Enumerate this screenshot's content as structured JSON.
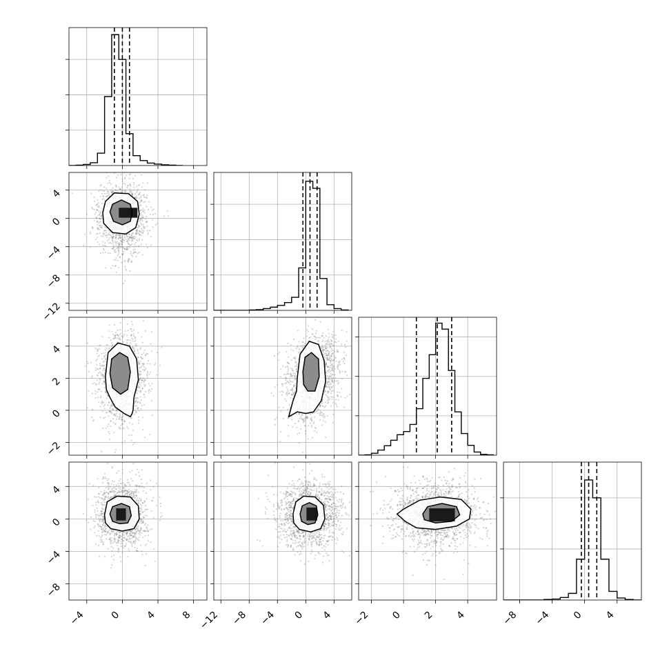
{
  "chart_data": {
    "type": "corner",
    "num_params": 4,
    "scatter_color": "#808080",
    "line_color": "#000000",
    "params": [
      {
        "range": [
          -6,
          9.5
        ],
        "ticks": [
          -4,
          0,
          4,
          8
        ],
        "tick_labels": [
          "−4",
          "0",
          "4",
          "8"
        ],
        "quantiles": [
          -0.9,
          0.0,
          0.8
        ]
      },
      {
        "range": [
          -13,
          6.5
        ],
        "ticks": [
          -12,
          -8,
          -4,
          0,
          4
        ],
        "tick_labels": [
          "−12",
          "−8",
          "−4",
          "0",
          "4"
        ],
        "quantiles": [
          -0.4,
          0.6,
          1.6
        ]
      },
      {
        "range": [
          -2.8,
          5.8
        ],
        "ticks": [
          -2,
          0,
          2,
          4
        ],
        "tick_labels": [
          "−2",
          "0",
          "2",
          "4"
        ],
        "quantiles": [
          0.8,
          2.1,
          3.0
        ]
      },
      {
        "range": [
          -10,
          7
        ],
        "ticks": [
          -8,
          -4,
          0,
          4
        ],
        "tick_labels": [
          "−8",
          "−4",
          "0",
          "4"
        ],
        "quantiles": [
          -0.4,
          0.5,
          1.5
        ]
      }
    ],
    "histograms": [
      {
        "edges": [
          -6,
          -5.2,
          -4.4,
          -3.6,
          -2.8,
          -2.0,
          -1.2,
          -0.4,
          0.4,
          1.2,
          2.0,
          2.8,
          3.6,
          4.4,
          5.2,
          6.0,
          6.8
        ],
        "counts": [
          0,
          1,
          3,
          8,
          35,
          195,
          370,
          300,
          90,
          28,
          14,
          7,
          4,
          2,
          1,
          0
        ],
        "ymax": 390,
        "yticks": [
          100,
          200,
          300
        ]
      },
      {
        "edges": [
          -13,
          -12,
          -11,
          -10,
          -9,
          -8,
          -7,
          -6,
          -5,
          -4,
          -3,
          -2,
          -1,
          0,
          1,
          2,
          3,
          4,
          5,
          6
        ],
        "counts": [
          0,
          0,
          0,
          0,
          0,
          1,
          2,
          5,
          9,
          14,
          22,
          37,
          120,
          365,
          345,
          90,
          16,
          5,
          1
        ],
        "ymax": 390,
        "yticks": [
          100,
          200,
          300
        ]
      },
      {
        "edges": [
          -2.8,
          -2.4,
          -2.0,
          -1.6,
          -1.2,
          -0.8,
          -0.4,
          0.0,
          0.4,
          0.8,
          1.2,
          1.6,
          2.0,
          2.4,
          2.8,
          3.2,
          3.6,
          4.0,
          4.4,
          4.8,
          5.2,
          5.6
        ],
        "counts": [
          0,
          1,
          5,
          13,
          24,
          38,
          52,
          60,
          78,
          118,
          195,
          255,
          335,
          320,
          215,
          110,
          55,
          25,
          8,
          2,
          1
        ],
        "ymax": 350,
        "yticks": [
          100,
          200,
          300
        ]
      },
      {
        "edges": [
          -10,
          -9,
          -8,
          -7,
          -6,
          -5,
          -4,
          -3,
          -2,
          -1,
          0,
          1,
          2,
          3,
          4,
          5,
          6,
          7
        ],
        "counts": [
          0,
          0,
          0,
          0,
          0,
          1,
          2,
          5,
          13,
          80,
          235,
          200,
          80,
          17,
          4,
          1,
          0
        ],
        "ymax": 270,
        "yticks": [
          100,
          200
        ]
      }
    ],
    "pairs": [
      {
        "row": 1,
        "col": 0,
        "mean": [
          0.0,
          0.6
        ],
        "sd": [
          1.35,
          2.1
        ],
        "rho": 0.0,
        "tail": -3.0,
        "contours": [
          [
            [
              -2.2,
              0.8
            ],
            [
              -1.9,
              2.4
            ],
            [
              -0.9,
              3.6
            ],
            [
              0.7,
              3.5
            ],
            [
              1.7,
              2.4
            ],
            [
              1.9,
              0.6
            ],
            [
              1.5,
              -1.3
            ],
            [
              0.4,
              -2.2
            ],
            [
              -1.1,
              -2.0
            ],
            [
              -2.1,
              -0.7
            ]
          ],
          [
            [
              -1.4,
              0.9
            ],
            [
              -1.1,
              2.0
            ],
            [
              -0.1,
              2.6
            ],
            [
              0.9,
              2.0
            ],
            [
              1.1,
              0.8
            ],
            [
              0.9,
              -0.4
            ],
            [
              0.0,
              -0.9
            ],
            [
              -1.0,
              -0.4
            ]
          ]
        ],
        "dense": [
          -0.4,
          0.1,
          1.7,
          1.5
        ]
      },
      {
        "row": 2,
        "col": 0,
        "mean": [
          0.0,
          2.2
        ],
        "sd": [
          1.3,
          1.2
        ],
        "rho": 0.0,
        "tail": -1.2,
        "contours": [
          [
            [
              -1.9,
              2.1
            ],
            [
              -1.6,
              3.6
            ],
            [
              -0.5,
              4.2
            ],
            [
              0.8,
              4.0
            ],
            [
              1.6,
              3.2
            ],
            [
              1.8,
              1.9
            ],
            [
              1.3,
              0.8
            ],
            [
              1.2,
              0.0
            ],
            [
              1.1,
              -0.2
            ],
            [
              0.9,
              -0.4
            ],
            [
              0.2,
              -0.2
            ],
            [
              -0.8,
              0.2
            ],
            [
              -1.4,
              0.8
            ],
            [
              -1.8,
              1.3
            ]
          ],
          [
            [
              -1.4,
              2.3
            ],
            [
              -1.2,
              3.2
            ],
            [
              -0.3,
              3.6
            ],
            [
              0.6,
              3.3
            ],
            [
              0.9,
              2.4
            ],
            [
              0.6,
              1.3
            ],
            [
              -0.2,
              1.0
            ],
            [
              -1.1,
              1.4
            ]
          ]
        ],
        "dense": [
          -0.5,
          1.8,
          1.1,
          1.3
        ]
      },
      {
        "row": 2,
        "col": 1,
        "mean": [
          1.0,
          2.2
        ],
        "sd": [
          1.9,
          1.2
        ],
        "rho": 0.3,
        "tail": -1.3,
        "contours": [
          [
            [
              -1.2,
              2.0
            ],
            [
              -0.8,
              3.5
            ],
            [
              0.5,
              4.3
            ],
            [
              1.8,
              4.1
            ],
            [
              2.6,
              3.1
            ],
            [
              2.8,
              1.8
            ],
            [
              2.2,
              0.6
            ],
            [
              1.1,
              -0.1
            ],
            [
              0.0,
              -0.2
            ],
            [
              -1.2,
              -0.1
            ],
            [
              -2.4,
              -0.4
            ],
            [
              -1.8,
              0.6
            ],
            [
              -1.3,
              1.2
            ]
          ],
          [
            [
              -0.4,
              2.4
            ],
            [
              -0.1,
              3.3
            ],
            [
              0.8,
              3.6
            ],
            [
              1.8,
              3.2
            ],
            [
              1.9,
              2.1
            ],
            [
              1.3,
              1.2
            ],
            [
              0.3,
              1.2
            ],
            [
              -0.3,
              1.6
            ]
          ]
        ],
        "dense": [
          0.1,
          1.6,
          2.2,
          1.4
        ]
      },
      {
        "row": 3,
        "col": 0,
        "mean": [
          0.0,
          0.5
        ],
        "sd": [
          1.35,
          2.0
        ],
        "rho": 0.0,
        "tail": 0,
        "contours": [
          [
            [
              -2.0,
              0.5
            ],
            [
              -1.7,
              2.1
            ],
            [
              -0.6,
              2.8
            ],
            [
              0.9,
              2.7
            ],
            [
              1.8,
              1.6
            ],
            [
              1.9,
              0.0
            ],
            [
              1.3,
              -1.2
            ],
            [
              0.0,
              -1.5
            ],
            [
              -1.3,
              -1.2
            ],
            [
              -1.9,
              -0.5
            ]
          ],
          [
            [
              -1.4,
              0.6
            ],
            [
              -1.1,
              1.5
            ],
            [
              -0.1,
              1.9
            ],
            [
              0.8,
              1.5
            ],
            [
              1.0,
              0.4
            ],
            [
              0.6,
              -0.5
            ],
            [
              -0.3,
              -0.6
            ],
            [
              -1.1,
              -0.3
            ]
          ]
        ],
        "dense": [
          -0.7,
          -0.2,
          0.4,
          1.3
        ]
      },
      {
        "row": 3,
        "col": 1,
        "mean": [
          0.6,
          0.5
        ],
        "sd": [
          2.3,
          2.0
        ],
        "rho": 0.0,
        "tail": 0,
        "contours": [
          [
            [
              -1.8,
              0.6
            ],
            [
              -1.4,
              2.1
            ],
            [
              -0.3,
              2.8
            ],
            [
              1.3,
              2.7
            ],
            [
              2.5,
              1.7
            ],
            [
              2.7,
              0.0
            ],
            [
              2.1,
              -1.2
            ],
            [
              0.7,
              -1.6
            ],
            [
              -0.9,
              -1.3
            ],
            [
              -1.7,
              -0.5
            ]
          ],
          [
            [
              -0.8,
              0.6
            ],
            [
              -0.5,
              1.6
            ],
            [
              0.5,
              2.0
            ],
            [
              1.5,
              1.6
            ],
            [
              1.7,
              0.5
            ],
            [
              1.3,
              -0.5
            ],
            [
              0.3,
              -0.7
            ],
            [
              -0.6,
              -0.3
            ]
          ]
        ],
        "dense": [
          0.1,
          -0.2,
          1.6,
          1.4
        ]
      },
      {
        "row": 3,
        "col": 2,
        "mean": [
          2.0,
          0.5
        ],
        "sd": [
          1.3,
          2.0
        ],
        "rho": 0.0,
        "tail": 0,
        "contours": [
          [
            [
              -0.4,
              0.6
            ],
            [
              0.0,
              1.2
            ],
            [
              1.0,
              2.3
            ],
            [
              2.3,
              2.7
            ],
            [
              3.6,
              2.4
            ],
            [
              4.2,
              1.2
            ],
            [
              4.1,
              0.0
            ],
            [
              3.3,
              -0.9
            ],
            [
              2.0,
              -1.3
            ],
            [
              0.8,
              -1.1
            ],
            [
              0.1,
              -0.3
            ]
          ],
          [
            [
              1.2,
              0.6
            ],
            [
              1.5,
              1.5
            ],
            [
              2.4,
              1.9
            ],
            [
              3.3,
              1.5
            ],
            [
              3.5,
              0.5
            ],
            [
              3.0,
              -0.3
            ],
            [
              2.0,
              -0.5
            ],
            [
              1.3,
              -0.1
            ]
          ]
        ],
        "dense": [
          1.6,
          -0.3,
          3.2,
          1.3
        ]
      }
    ]
  }
}
